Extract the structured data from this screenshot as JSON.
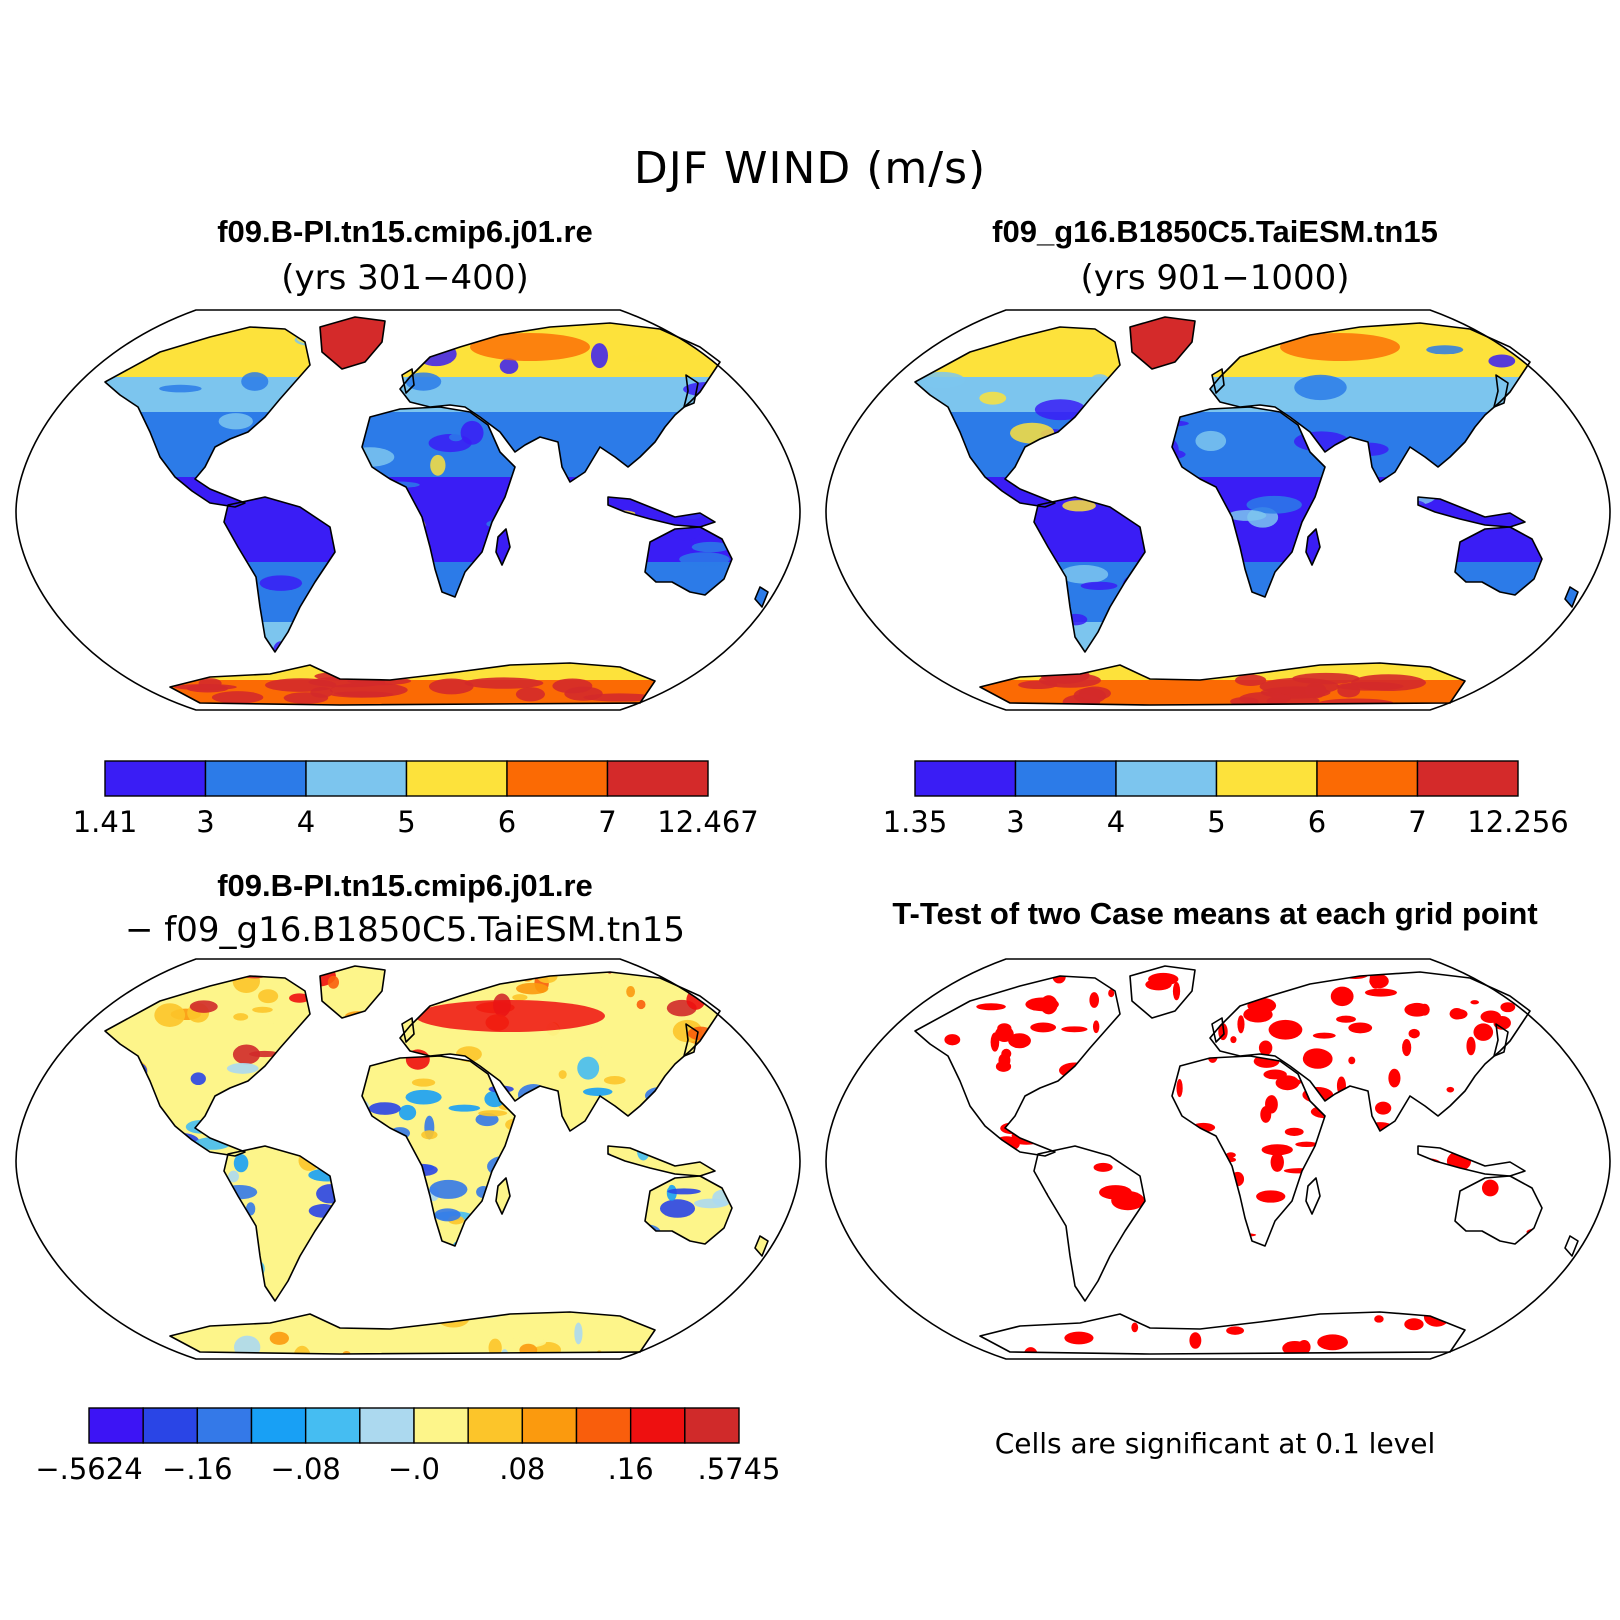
{
  "title": "DJF WIND (m/s)",
  "panels": [
    {
      "title": "f09.B-PI.tn15.cmip6.j01.re",
      "subtitle": "(yrs 301−400)",
      "colorbar": {
        "labels": [
          "1.41",
          "3",
          "4",
          "5",
          "6",
          "7",
          "12.467"
        ],
        "colors": [
          "#3a1df5",
          "#2c7be8",
          "#7cc5ee",
          "#fde23b",
          "#fb6a04",
          "#d42a2a"
        ]
      }
    },
    {
      "title": "f09_g16.B1850C5.TaiESM.tn15",
      "subtitle": "(yrs 901−1000)",
      "colorbar": {
        "labels": [
          "1.35",
          "3",
          "4",
          "5",
          "6",
          "7",
          "12.256"
        ],
        "colors": [
          "#3a1df5",
          "#2c7be8",
          "#7cc5ee",
          "#fde23b",
          "#fb6a04",
          "#d42a2a"
        ]
      }
    },
    {
      "title": "f09.B-PI.tn15.cmip6.j01.re",
      "subtitle": "− f09_g16.B1850C5.TaiESM.tn15",
      "colorbar": {
        "labels": [
          "−.5624",
          "−.16",
          "−.08",
          "−.0",
          ".08",
          ".16",
          ".5745"
        ],
        "colors": [
          "#3d14f5",
          "#2a45e6",
          "#3479e8",
          "#18a0f5",
          "#45bdf2",
          "#acd9ef",
          "#fdf58a",
          "#fcc52a",
          "#fb9a0e",
          "#f95e0c",
          "#ee1010",
          "#d02a2a"
        ]
      }
    },
    {
      "title": "T-Test of two Case means at each grid point",
      "note": "Cells are significant at 0.1 level",
      "sig_color": "#ff0000"
    }
  ]
}
